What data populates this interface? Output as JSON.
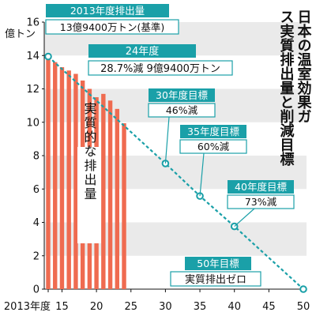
{
  "chart_data": {
    "type": "bar",
    "title": "日本の温室効果ガス実質排出量と削減目標",
    "ylabel": "億トン",
    "xlabel": "年度",
    "ylim": [
      0,
      16
    ],
    "xlim": [
      2013,
      2050
    ],
    "y_ticks": [
      0,
      2,
      4,
      6,
      8,
      10,
      12,
      14,
      16
    ],
    "x_tick_labels": [
      "2013年度",
      "15",
      "20",
      "25",
      "30",
      "35",
      "40",
      "45",
      "50"
    ],
    "x_tick_values": [
      2013,
      2015,
      2020,
      2025,
      2030,
      2035,
      2040,
      2045,
      2050
    ],
    "grid": "horizontal bands",
    "bar_label": "実質的な排出量",
    "bars": {
      "years": [
        2013,
        2014,
        2015,
        2016,
        2017,
        2018,
        2019,
        2020,
        2021,
        2022,
        2023,
        2024
      ],
      "values": [
        13.94,
        13.6,
        13.3,
        13.1,
        12.9,
        12.5,
        12.0,
        11.5,
        11.7,
        11.3,
        10.8,
        9.94
      ]
    },
    "target_line": {
      "years": [
        2013,
        2030,
        2035,
        2040,
        2050
      ],
      "values": [
        13.94,
        7.53,
        5.58,
        3.76,
        0
      ]
    },
    "annotations": [
      {
        "id": "a2013",
        "lines": [
          "2013年度排出量",
          "13億9400万トン(基準)"
        ],
        "year": 2013,
        "value": 13.94
      },
      {
        "id": "a2024",
        "lines": [
          "24年度",
          "28.7%減 9億9400万トン"
        ],
        "year": 2024,
        "value": 9.94
      },
      {
        "id": "a2030",
        "lines": [
          "30年度目標",
          "46%減"
        ],
        "year": 2030,
        "value": 7.53
      },
      {
        "id": "a2035",
        "lines": [
          "35年度目標",
          "60%減"
        ],
        "year": 2035,
        "value": 5.58
      },
      {
        "id": "a2040",
        "lines": [
          "40年度目標",
          "73%減"
        ],
        "year": 2040,
        "value": 3.76
      },
      {
        "id": "a2050",
        "lines": [
          "50年目標",
          "実質排出ゼロ"
        ],
        "year": 2050,
        "value": 0
      }
    ],
    "colors": {
      "bar": "#ef6b50",
      "line": "#1aa0a8",
      "label_bg": "#1aa0a8",
      "label_text": "#ffffff",
      "band": "#eaeaea",
      "text": "#111111"
    }
  }
}
